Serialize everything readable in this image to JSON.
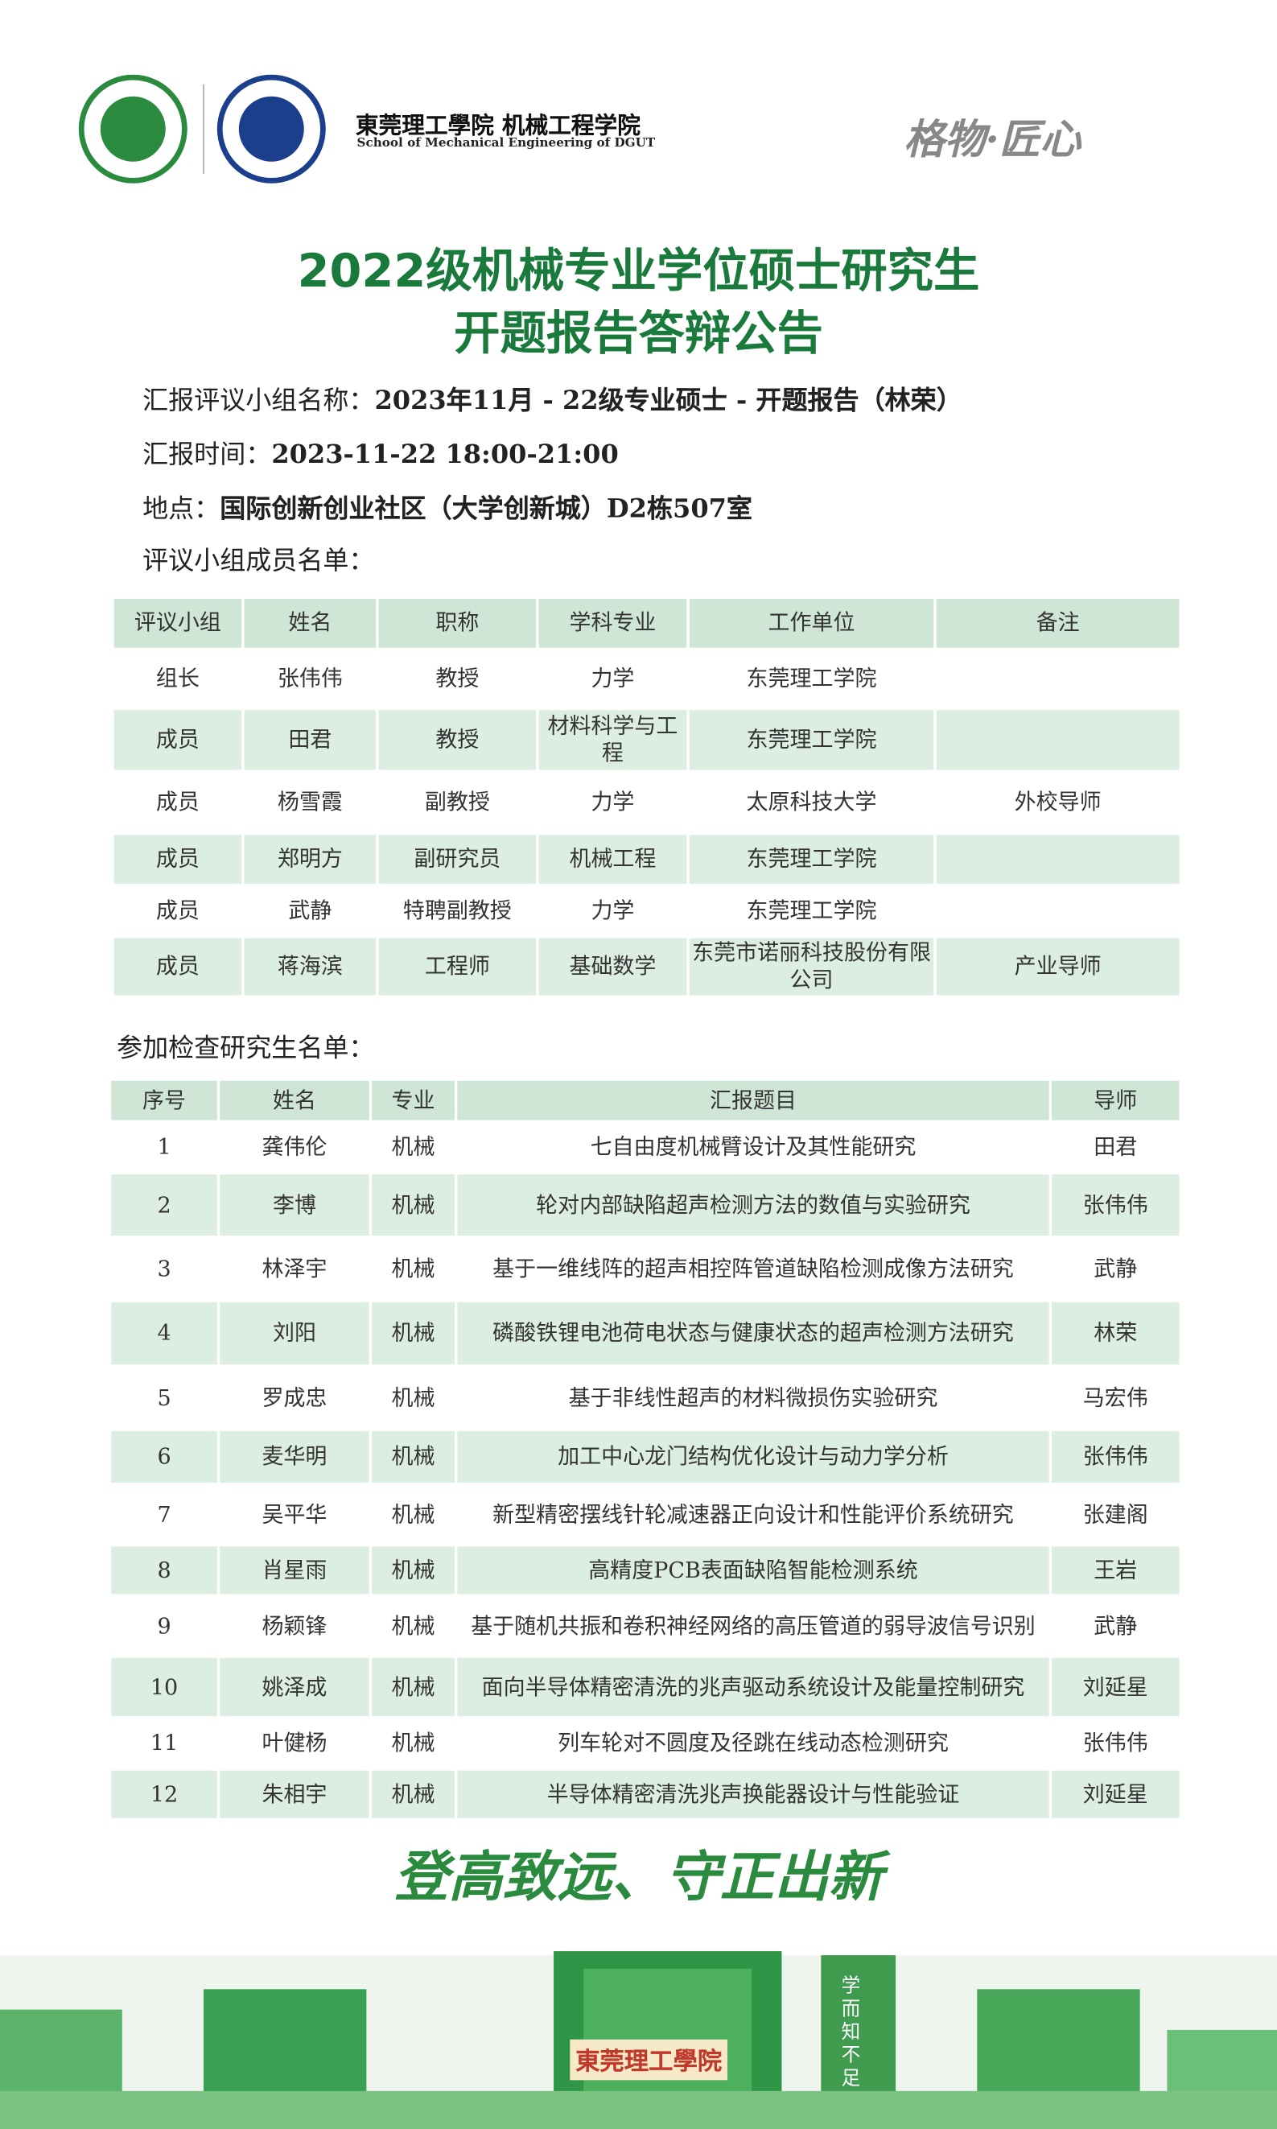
{
  "header": {
    "school_cn": "東莞理工學院",
    "college_cn": "机械工程学院",
    "college_en": "School of Mechanical Engineering of DGUT",
    "motto": "格物·匠心"
  },
  "title": [
    "2022级机械专业学位硕士研究生",
    "开题报告答辩公告"
  ],
  "info": [
    {
      "label": "汇报评议小组名称：",
      "value": "2023年11月 - 22级专业硕士 - 开题报告（林荣）"
    },
    {
      "label": "汇报时间：",
      "value": "2023-11-22  18:00-21:00"
    },
    {
      "label": "地点：",
      "value": "国际创新创业社区（大学创新城）D2栋507室"
    }
  ],
  "committee": {
    "heading": "评议小组成员名单：",
    "columns": [
      "评议小组",
      "姓名",
      "职称",
      "学科专业",
      "工作单位",
      "备注"
    ],
    "rows": [
      [
        "组长",
        "张伟伟",
        "教授",
        "力学",
        "东莞理工学院",
        null
      ],
      [
        "成员",
        "田君",
        "教授",
        "材料科学与工程",
        "东莞理工学院",
        null
      ],
      [
        "成员",
        "杨雪霞",
        "副教授",
        "力学",
        "太原科技大学",
        "外校导师"
      ],
      [
        "成员",
        "郑明方",
        "副研究员",
        "机械工程",
        "东莞理工学院",
        null
      ],
      [
        "成员",
        "武静",
        "特聘副教授",
        "力学",
        "东莞理工学院",
        null
      ],
      [
        "成员",
        "蒋海滨",
        "工程师",
        "基础数学",
        "东莞市诺丽科技股份有限公司",
        "产业导师"
      ]
    ]
  },
  "students": {
    "heading": "参加检查研究生名单：",
    "columns": [
      "序号",
      "姓名",
      "专业",
      "汇报题目",
      "导师"
    ],
    "rows": [
      [
        "1",
        "龚伟伦",
        "机械",
        "七自由度机械臂设计及其性能研究",
        "田君"
      ],
      [
        "2",
        "李博",
        "机械",
        "轮对内部缺陷超声检测方法的数值与实验研究",
        "张伟伟"
      ],
      [
        "3",
        "林泽宇",
        "机械",
        "基于一维线阵的超声相控阵管道缺陷检测成像方法研究",
        "武静"
      ],
      [
        "4",
        "刘阳",
        "机械",
        "磷酸铁锂电池荷电状态与健康状态的超声检测方法研究",
        "林荣"
      ],
      [
        "5",
        "罗成忠",
        "机械",
        "基于非线性超声的材料微损伤实验研究",
        "马宏伟"
      ],
      [
        "6",
        "麦华明",
        "机械",
        "加工中心龙门结构优化设计与动力学分析",
        "张伟伟"
      ],
      [
        "7",
        "吴平华",
        "机械",
        "新型精密摆线针轮减速器正向设计和性能评价系统研究",
        "张建阁"
      ],
      [
        "8",
        "肖星雨",
        "机械",
        "高精度PCB表面缺陷智能检测系统",
        "王岩"
      ],
      [
        "9",
        "杨颖锋",
        "机械",
        "基于随机共振和卷积神经网络的高压管道的弱导波信号识别",
        "武静"
      ],
      [
        "10",
        "姚泽成",
        "机械",
        "面向半导体精密清洗的兆声驱动系统设计及能量控制研究",
        "刘延星"
      ],
      [
        "11",
        "叶健杨",
        "机械",
        "列车轮对不圆度及径跳在线动态检测研究",
        "张伟伟"
      ],
      [
        "12",
        "朱相宇",
        "机械",
        "半导体精密清洗兆声换能器设计与性能验证",
        "刘延星"
      ]
    ]
  },
  "footer": {
    "slogan": "登高致远、守正出新",
    "gate_sign": "東莞理工學院",
    "stone": "学而知不足"
  }
}
